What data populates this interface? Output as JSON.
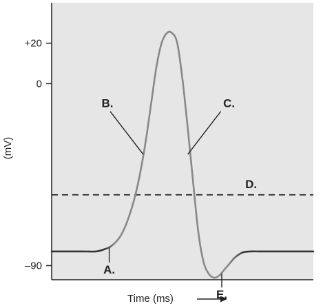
{
  "chart_data": {
    "type": "line",
    "title": "",
    "xlabel": "Time (ms)",
    "ylabel": "(mV)",
    "y_ticks": [
      {
        "value": 20,
        "label": "+20"
      },
      {
        "value": 0,
        "label": "0"
      },
      {
        "value": -90,
        "label": "–90"
      }
    ],
    "ylim": [
      -97,
      40
    ],
    "xlim": [
      0,
      100
    ],
    "threshold_mv": -55,
    "series": [
      {
        "name": "",
        "x": [
          0,
          12,
          17,
          20,
          22,
          24,
          26,
          28,
          30,
          32,
          34,
          36,
          38,
          40,
          42,
          44,
          46,
          48,
          50,
          52,
          54,
          56,
          58,
          60,
          62,
          64,
          66,
          68,
          70,
          73,
          76,
          79,
          82,
          100
        ],
        "y": [
          -83,
          -83,
          -83,
          -82,
          -81,
          -79,
          -76,
          -71,
          -64,
          -55,
          -43,
          -28,
          -10,
          8,
          20,
          25,
          25,
          20,
          2,
          -22,
          -48,
          -73,
          -88,
          -94,
          -96,
          -95,
          -92,
          -89,
          -86,
          -83.5,
          -83,
          -83,
          -83,
          -83
        ]
      }
    ],
    "annotations": [
      {
        "label": "A.",
        "x": 22,
        "y": -81
      },
      {
        "label": "B.",
        "x": 35,
        "y": -35
      },
      {
        "label": "C.",
        "x": 52,
        "y": -35
      },
      {
        "label": "D.",
        "x": 72,
        "y": -55
      },
      {
        "label": "E.",
        "x": 65,
        "y": -94
      }
    ],
    "grid": false,
    "legend": "none",
    "colors": {
      "plot_background": "#e6e6e6",
      "curve_resting": "#333333",
      "curve_spike": "#888888",
      "threshold_line": "#222222"
    }
  }
}
